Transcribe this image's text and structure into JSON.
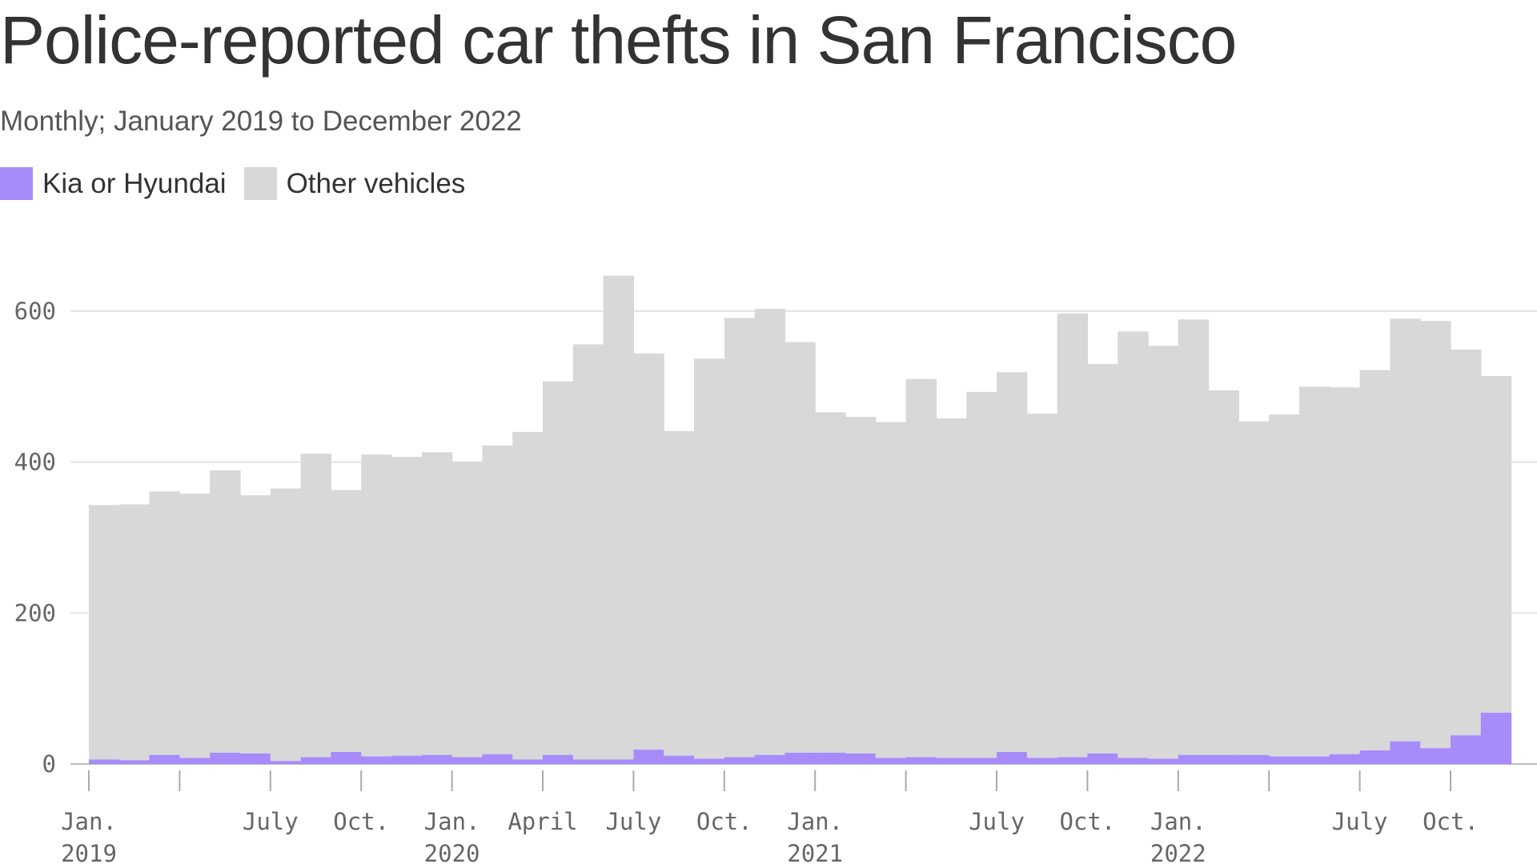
{
  "title": "Police-reported car thefts in San Francisco",
  "subtitle": "Monthly; January 2019 to December 2022",
  "legend": {
    "items": [
      {
        "label": "Kia or Hyundai",
        "color": "#a78bfa"
      },
      {
        "label": "Other vehicles",
        "color": "#d8d8d8"
      }
    ]
  },
  "chart_data": {
    "type": "bar",
    "stacked": true,
    "x_start": "2019-01",
    "x_end": "2022-12",
    "ylim": [
      0,
      650
    ],
    "y_ticks": [
      0,
      200,
      400,
      600
    ],
    "grid": true,
    "legend_position": "top-left",
    "x_tick_labels": [
      {
        "month": "2019-01",
        "line1": "Jan.",
        "line2": "2019"
      },
      {
        "month": "2019-07",
        "line1": "July",
        "line2": ""
      },
      {
        "month": "2019-10",
        "line1": "Oct.",
        "line2": ""
      },
      {
        "month": "2020-01",
        "line1": "Jan.",
        "line2": "2020"
      },
      {
        "month": "2020-04",
        "line1": "April",
        "line2": ""
      },
      {
        "month": "2020-07",
        "line1": "July",
        "line2": ""
      },
      {
        "month": "2020-10",
        "line1": "Oct.",
        "line2": ""
      },
      {
        "month": "2021-01",
        "line1": "Jan.",
        "line2": "2021"
      },
      {
        "month": "2021-07",
        "line1": "July",
        "line2": ""
      },
      {
        "month": "2021-10",
        "line1": "Oct.",
        "line2": ""
      },
      {
        "month": "2022-01",
        "line1": "Jan.",
        "line2": "2022"
      },
      {
        "month": "2022-07",
        "line1": "July",
        "line2": ""
      },
      {
        "month": "2022-10",
        "line1": "Oct.",
        "line2": ""
      }
    ],
    "series": [
      {
        "name": "Kia or Hyundai",
        "color": "#a78bfa",
        "values": [
          6,
          5,
          12,
          8,
          15,
          14,
          4,
          9,
          16,
          10,
          11,
          12,
          9,
          13,
          6,
          12,
          6,
          6,
          19,
          11,
          7,
          9,
          12,
          15,
          15,
          14,
          8,
          9,
          8,
          8,
          16,
          8,
          9,
          14,
          8,
          7,
          12,
          12,
          12,
          10,
          10,
          13,
          18,
          30,
          21,
          38,
          68,
          null
        ]
      },
      {
        "name": "Other vehicles",
        "color": "#d8d8d8",
        "values": [
          337,
          339,
          349,
          350,
          374,
          342,
          361,
          402,
          347,
          400,
          396,
          401,
          391,
          409,
          434,
          495,
          550,
          641,
          525,
          430,
          530,
          582,
          591,
          544,
          451,
          446,
          445,
          501,
          450,
          485,
          503,
          456,
          588,
          516,
          565,
          547,
          577,
          483,
          442,
          453,
          490,
          486,
          504,
          560,
          566,
          511,
          446,
          null
        ]
      }
    ],
    "totals": [
      343,
      344,
      361,
      358,
      389,
      356,
      365,
      411,
      363,
      410,
      407,
      413,
      400,
      422,
      440,
      507,
      556,
      647,
      544,
      441,
      537,
      591,
      603,
      559,
      466,
      460,
      453,
      510,
      458,
      493,
      519,
      464,
      597,
      530,
      573,
      554,
      589,
      490,
      454,
      463,
      500,
      499,
      522,
      590,
      587,
      549,
      514,
      null
    ]
  }
}
